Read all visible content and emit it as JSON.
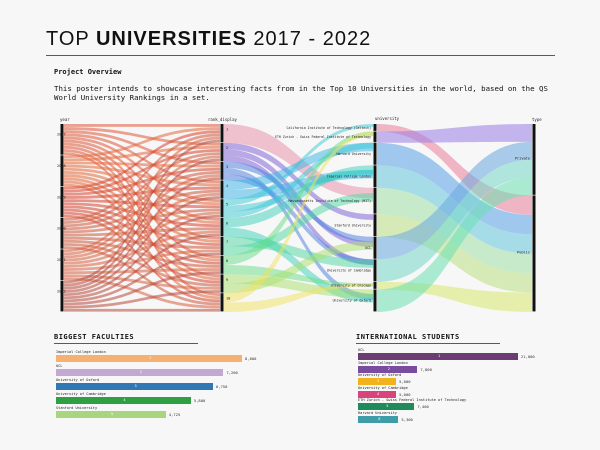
{
  "header": {
    "title_light": "TOP ",
    "title_bold": "UNIVERSITIES",
    "title_years": " 2017 - 2022"
  },
  "overview": {
    "heading": "Project Overview",
    "text": "This poster intends to showcase interesting facts from in the Top 10 Universities in the world, based on the QS World University Rankings in a set."
  },
  "sankey": {
    "left_title": "year",
    "mid_title": "rank_display",
    "right_title": "university",
    "type_title": "type",
    "years": [
      "2017",
      "2018",
      "2019",
      "2020",
      "2021",
      "2022"
    ],
    "ranks": [
      "1",
      "2",
      "3",
      "4",
      "5",
      "6",
      "7",
      "8",
      "9",
      "10"
    ],
    "universities": [
      "California Institute of Technology (Caltech)",
      "ETH Zurich - Swiss Federal Institute of Technology",
      "Harvard University",
      "Imperial College London",
      "Massachusetts Institute of Technology (MIT)",
      "Stanford University",
      "UCL",
      "University of Cambridge",
      "University of Chicago",
      "University of Oxford"
    ],
    "types": [
      "Private",
      "Public"
    ],
    "colors": {
      "years": [
        "#e2573a",
        "#e56a3b",
        "#d9432f",
        "#cf5a3a",
        "#d8603f",
        "#b84a3c"
      ],
      "ranks": [
        "#e88aa6",
        "#7a5cd6",
        "#4a7be0",
        "#38b4e6",
        "#39c7d6",
        "#3ccfbb",
        "#4dd8a0",
        "#67dd86",
        "#a9e06a",
        "#f2e25c"
      ],
      "universities": [
        "#e97f9b",
        "#9a7ee8",
        "#5aa3ea",
        "#65c7dc",
        "#9fe0a6",
        "#b9e081",
        "#6aa7e0",
        "#74d7c9",
        "#d9e770",
        "#69e0b2"
      ],
      "types": [
        "#f6e27a",
        "#8ecfa4"
      ]
    }
  },
  "faculties": {
    "heading": "BIGGEST FACULTIES",
    "color": "#f6a85e",
    "items": [
      {
        "label": "Imperial College London",
        "value": 8000,
        "value_text": "8,000",
        "idx": "1",
        "color": "#f6b072"
      },
      {
        "label": "UCL",
        "value": 7200,
        "value_text": "7,200",
        "idx": "2",
        "color": "#c4a8d4"
      },
      {
        "label": "University of Oxford",
        "value": 6750,
        "value_text": "6,750",
        "idx": "3",
        "color": "#2f78b4"
      },
      {
        "label": "University of Cambridge",
        "value": 5800,
        "value_text": "5,800",
        "idx": "4",
        "color": "#2ea043"
      },
      {
        "label": "Stanford University",
        "value": 4725,
        "value_text": "4,725",
        "idx": "5",
        "color": "#a8d67e"
      }
    ]
  },
  "international": {
    "heading": "INTERNATIONAL STUDENTS",
    "items": [
      {
        "label": "UCL",
        "value": 21000,
        "value_text": "21,000",
        "idx": "1",
        "color": "#6b3d73"
      },
      {
        "label": "Imperial College London",
        "value": 7800,
        "value_text": "7,800",
        "idx": "2",
        "color": "#7a4ca0"
      },
      {
        "label": "University of Oxford",
        "value": 5000,
        "value_text": "5,000",
        "idx": "3",
        "color": "#f2b21c"
      },
      {
        "label": "University of Cambridge",
        "value": 5000,
        "value_text": "5,000",
        "idx": "4",
        "color": "#d9457b"
      },
      {
        "label": "ETH Zurich - Swiss Federal Institute of Technology",
        "value": 7400,
        "value_text": "7,400",
        "idx": "5",
        "color": "#1f8a5a"
      },
      {
        "label": "Harvard University",
        "value": 5300,
        "value_text": "5,300",
        "idx": "6",
        "color": "#3f9da8"
      }
    ]
  },
  "chart_data": [
    {
      "type": "sankey",
      "columns": [
        "year",
        "rank_display",
        "university",
        "type"
      ],
      "nodes": {
        "year": [
          "2017",
          "2018",
          "2019",
          "2020",
          "2021",
          "2022"
        ],
        "rank_display": [
          "1",
          "2",
          "3",
          "4",
          "5",
          "6",
          "7",
          "8",
          "9",
          "10"
        ],
        "university": [
          "California Institute of Technology (Caltech)",
          "ETH Zurich - Swiss Federal Institute of Technology",
          "Harvard University",
          "Imperial College London",
          "Massachusetts Institute of Technology (MIT)",
          "Stanford University",
          "UCL",
          "University of Cambridge",
          "University of Chicago",
          "University of Oxford"
        ],
        "type": [
          "Private",
          "Public"
        ]
      }
    },
    {
      "type": "bar",
      "title": "BIGGEST FACULTIES",
      "categories": [
        "Imperial College London",
        "UCL",
        "University of Oxford",
        "University of Cambridge",
        "Stanford University"
      ],
      "values": [
        8000,
        7200,
        6750,
        5800,
        4725
      ]
    },
    {
      "type": "bar",
      "title": "INTERNATIONAL STUDENTS",
      "categories": [
        "UCL",
        "Imperial College London",
        "University of Oxford",
        "University of Cambridge",
        "ETH Zurich - Swiss Federal Institute of Technology",
        "Harvard University"
      ],
      "values": [
        21000,
        7800,
        5000,
        5000,
        7400,
        5300
      ]
    }
  ]
}
